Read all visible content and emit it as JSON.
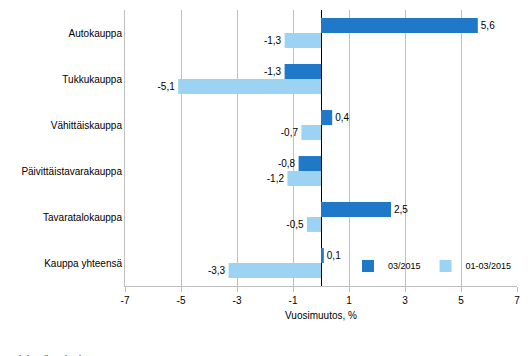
{
  "chart_data": {
    "type": "bar",
    "orientation": "horizontal",
    "categories": [
      "Autokauppa",
      "Tukkukauppa",
      "Vähittäiskauppa",
      "Päivittäistavarakauppa",
      "Tavaratalokauppa",
      "Kauppa yhteensä"
    ],
    "series": [
      {
        "name": "03/2015",
        "color": "#1f78c8",
        "values": [
          5.6,
          -1.3,
          0.4,
          -0.8,
          2.5,
          0.1
        ],
        "value_labels": [
          "5,6",
          "-1,3",
          "0,4",
          "-0,8",
          "2,5",
          "0,1"
        ]
      },
      {
        "name": "01-03/2015",
        "color": "#9dd3f2",
        "values": [
          -1.3,
          -5.1,
          -0.7,
          -1.2,
          -0.5,
          -3.3
        ],
        "value_labels": [
          "-1,3",
          "-5,1",
          "-0,7",
          "-1,2",
          "-0,5",
          "-3,3"
        ]
      }
    ],
    "x_label": "Vuosimuutos, %",
    "xlim": [
      -7,
      7
    ],
    "xticks": [
      -7,
      -5,
      -3,
      -1,
      1,
      3,
      5,
      7
    ],
    "grid": true,
    "data_labels": true,
    "legend": "lower right",
    "source": "Lähde: Tilastokeskus"
  }
}
